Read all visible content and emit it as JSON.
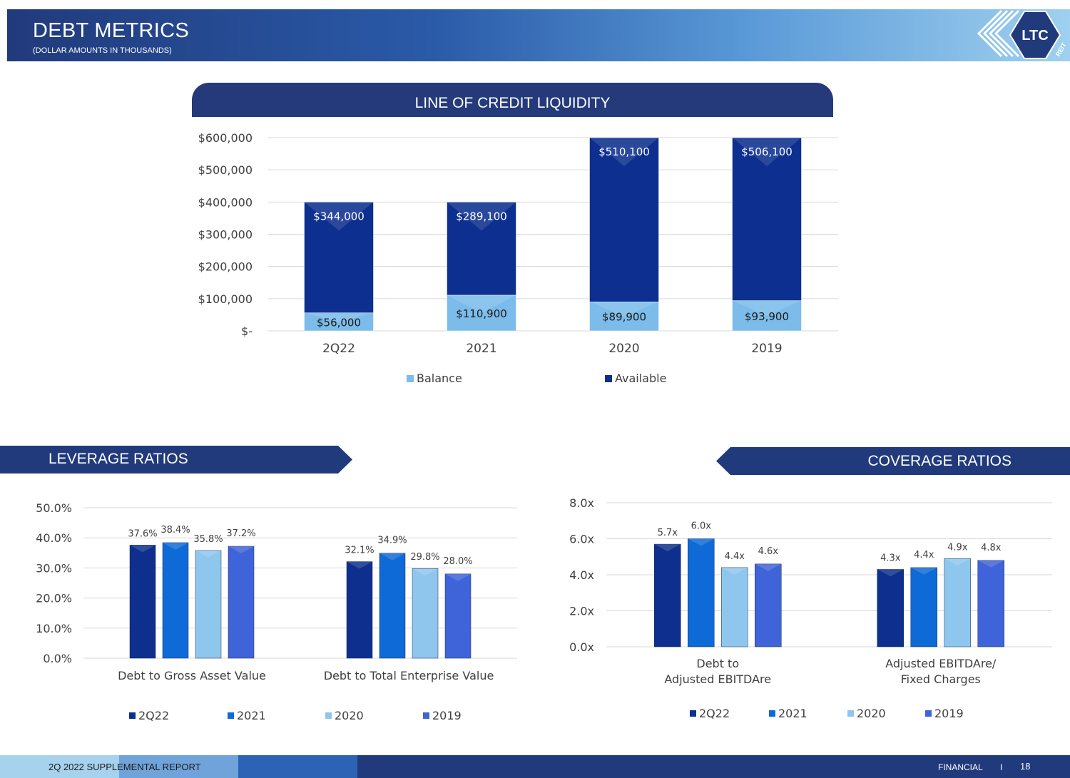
{
  "header": {
    "title": "DEBT METRICS",
    "subtitle": "(DOLLAR AMOUNTS IN THOUSANDS)",
    "logo_text": "LTC",
    "logo_subtext": "REIT"
  },
  "sections": {
    "credit_title": "LINE OF CREDIT LIQUIDITY",
    "leverage_title": "LEVERAGE RATIOS",
    "coverage_title": "COVERAGE RATIOS"
  },
  "footer": {
    "report": "2Q 2022 SUPPLEMENTAL REPORT",
    "section": "FINANCIAL",
    "separator": "I",
    "page": "18"
  },
  "colors": {
    "navy": "#213a7c",
    "balance": "#7cbcea",
    "available": "#0d2f8f",
    "s2q22": "#0e2f8e",
    "s2021": "#0d6ad6",
    "s2020": "#8ec6ee",
    "s2019": "#3f63d9"
  },
  "chart_data": [
    {
      "id": "credit",
      "type": "bar",
      "stacked": true,
      "title": "LINE OF CREDIT LIQUIDITY",
      "categories": [
        "2Q22",
        "2021",
        "2020",
        "2019"
      ],
      "series": [
        {
          "name": "Balance",
          "values": [
            56000,
            110900,
            89900,
            93900
          ],
          "labels": [
            "$56,000",
            "$110,900",
            "$89,900",
            "$93,900"
          ]
        },
        {
          "name": "Available",
          "values": [
            344000,
            289100,
            510100,
            506100
          ],
          "labels": [
            "$344,000",
            "$289,100",
            "$510,100",
            "$506,100"
          ]
        }
      ],
      "ylim": [
        0,
        600000
      ],
      "ytick_values": [
        0,
        100000,
        200000,
        300000,
        400000,
        500000,
        600000
      ],
      "ytick_labels": [
        "$-",
        "$100,000",
        "$200,000",
        "$300,000",
        "$400,000",
        "$500,000",
        "$600,000"
      ],
      "grid": true,
      "legend": "bottom"
    },
    {
      "id": "leverage",
      "type": "bar",
      "categories": [
        "Debt to Gross Asset Value",
        "Debt to Total Enterprise Value"
      ],
      "series": [
        {
          "name": "2Q22",
          "values": [
            37.6,
            32.1
          ],
          "labels": [
            "37.6%",
            "32.1%"
          ]
        },
        {
          "name": "2021",
          "values": [
            38.4,
            34.9
          ],
          "labels": [
            "38.4%",
            "34.9%"
          ]
        },
        {
          "name": "2020",
          "values": [
            35.8,
            29.8
          ],
          "labels": [
            "35.8%",
            "29.8%"
          ]
        },
        {
          "name": "2019",
          "values": [
            37.2,
            28.0
          ],
          "labels": [
            "37.2%",
            "28.0%"
          ]
        }
      ],
      "ylim": [
        0,
        50
      ],
      "ytick_values": [
        0,
        10,
        20,
        30,
        40,
        50
      ],
      "ytick_labels": [
        "0.0%",
        "10.0%",
        "20.0%",
        "30.0%",
        "40.0%",
        "50.0%"
      ],
      "grid": true,
      "legend": "bottom"
    },
    {
      "id": "coverage",
      "type": "bar",
      "categories": [
        [
          "Debt to",
          "Adjusted EBITDAre"
        ],
        [
          "Adjusted EBITDAre/",
          "Fixed Charges"
        ]
      ],
      "series": [
        {
          "name": "2Q22",
          "values": [
            5.7,
            4.3
          ],
          "labels": [
            "5.7x",
            "4.3x"
          ]
        },
        {
          "name": "2021",
          "values": [
            6.0,
            4.4
          ],
          "labels": [
            "6.0x",
            "4.4x"
          ]
        },
        {
          "name": "2020",
          "values": [
            4.4,
            4.9
          ],
          "labels": [
            "4.4x",
            "4.9x"
          ]
        },
        {
          "name": "2019",
          "values": [
            4.6,
            4.8
          ],
          "labels": [
            "4.6x",
            "4.8x"
          ]
        }
      ],
      "ylim": [
        0,
        8
      ],
      "ytick_values": [
        0,
        2,
        4,
        6,
        8
      ],
      "ytick_labels": [
        "0.0x",
        "2.0x",
        "4.0x",
        "6.0x",
        "8.0x"
      ],
      "grid": true,
      "legend": "bottom"
    }
  ]
}
